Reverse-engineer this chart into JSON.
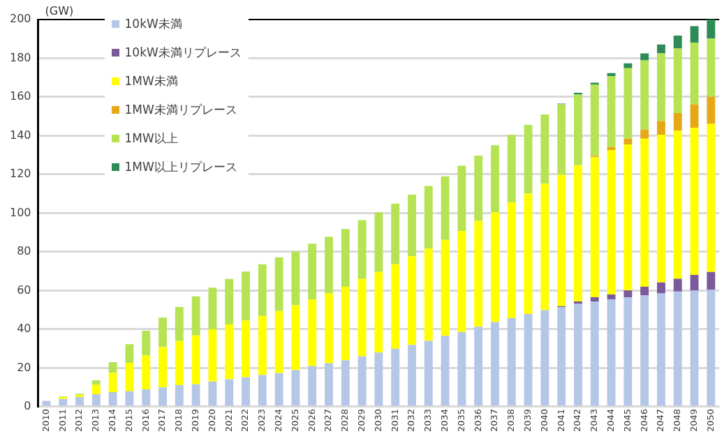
{
  "chart_data": {
    "type": "bar",
    "ylabel": "(GW)",
    "stacked": true,
    "grid": "y",
    "legend": "top left",
    "categories": [
      "2010",
      "2011",
      "2012",
      "2013",
      "2014",
      "2015",
      "2016",
      "2017",
      "2018",
      "2019",
      "2020",
      "2021",
      "2022",
      "2023",
      "2024",
      "2025",
      "2026",
      "2027",
      "2028",
      "2029",
      "2030",
      "2031",
      "2032",
      "2033",
      "2034",
      "2035",
      "2036",
      "2037",
      "2038",
      "2039",
      "2040",
      "2041",
      "2042",
      "2043",
      "2044",
      "2045",
      "2046",
      "2047",
      "2048",
      "2049",
      "2050"
    ],
    "ylim": [
      0,
      200
    ],
    "yticks": [
      0,
      20,
      40,
      60,
      80,
      100,
      120,
      140,
      160,
      180,
      200
    ],
    "series": [
      {
        "name": "10kW未満",
        "color": "#b4c7e7",
        "values": [
          3,
          4,
          5,
          6.5,
          7.5,
          8,
          9,
          10,
          11.2,
          11.6,
          13,
          14.2,
          15.2,
          16.4,
          17.4,
          18.9,
          21,
          22.5,
          24,
          26,
          28,
          30,
          32,
          34,
          36.6,
          38.6,
          41.3,
          43.8,
          45.8,
          47.9,
          49.9,
          51.4,
          53.1,
          54.4,
          55.5,
          56.5,
          57.5,
          58.5,
          59.5,
          60,
          60.5
        ]
      },
      {
        "name": "10kW未満リプレース",
        "color": "#7a5a9a",
        "values": [
          0,
          0,
          0,
          0,
          0,
          0,
          0,
          0,
          0,
          0,
          0,
          0,
          0,
          0,
          0,
          0,
          0,
          0,
          0,
          0,
          0,
          0,
          0,
          0,
          0,
          0,
          0,
          0,
          0,
          0,
          0,
          0.5,
          1.3,
          2.2,
          2.5,
          3.6,
          4.5,
          5.7,
          6.6,
          8.1,
          9.1
        ]
      },
      {
        "name": "1MW未満",
        "color": "#ffff00",
        "values": [
          0,
          1,
          1,
          4.8,
          10,
          14.7,
          17.5,
          20.8,
          22.8,
          25.2,
          27,
          28.3,
          29.3,
          30.5,
          32,
          33.5,
          34.5,
          36,
          38,
          40,
          41.6,
          43.6,
          45.7,
          47.7,
          49.6,
          52.2,
          54.7,
          56.6,
          59.8,
          62.3,
          65.3,
          67.9,
          70.4,
          72.3,
          74.5,
          75.4,
          76.5,
          76.3,
          76.5,
          76,
          76.5
        ]
      },
      {
        "name": "1MW未満リプレース",
        "color": "#e6a817",
        "values": [
          0,
          0,
          0,
          0,
          0,
          0,
          0,
          0,
          0,
          0,
          0,
          0,
          0,
          0,
          0,
          0,
          0,
          0,
          0,
          0,
          0,
          0,
          0,
          0,
          0,
          0,
          0,
          0,
          0,
          0,
          0,
          0,
          0,
          0.6,
          1.6,
          3,
          4.6,
          7.1,
          9.1,
          12.1,
          14.1
        ]
      },
      {
        "name": "1MW以上",
        "color": "#b5e354",
        "values": [
          0,
          0.3,
          0.7,
          2.4,
          5.5,
          9.6,
          12.8,
          15.2,
          17.5,
          20.2,
          21.5,
          23.5,
          25.3,
          26.7,
          27.8,
          27.8,
          28.7,
          29.3,
          29.8,
          30.4,
          30.8,
          31.3,
          31.8,
          32.3,
          32.8,
          33.7,
          33.7,
          34.6,
          34.8,
          35.4,
          35.8,
          36.4,
          36.5,
          37,
          36.7,
          36.4,
          35.8,
          34.9,
          33.3,
          31.9,
          30
        ]
      },
      {
        "name": "1MW以上リプレース",
        "color": "#2e8b57",
        "values": [
          0,
          0,
          0,
          0,
          0,
          0,
          0,
          0,
          0,
          0,
          0,
          0,
          0,
          0,
          0,
          0,
          0,
          0,
          0,
          0,
          0,
          0,
          0,
          0,
          0,
          0,
          0,
          0,
          0,
          0,
          0,
          0.4,
          0.9,
          0.9,
          1.5,
          2.5,
          3.6,
          4.6,
          6.7,
          8.5,
          9.8
        ]
      }
    ]
  }
}
